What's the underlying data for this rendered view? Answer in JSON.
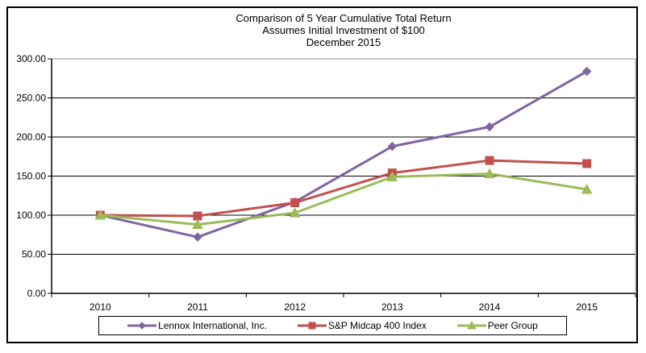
{
  "figure": {
    "background": "#ffffff",
    "border_color": "#000000"
  },
  "chart_data": {
    "type": "line",
    "title": "Comparison of 5 Year Cumulative Total Return",
    "subtitle1": "Assumes Initial Investment of $100",
    "subtitle2": "December 2015",
    "categories": [
      "2010",
      "2011",
      "2012",
      "2013",
      "2014",
      "2015"
    ],
    "series": [
      {
        "name": "Lennox International, Inc.",
        "color": "#8064A2",
        "marker": "diamond",
        "values": [
          100,
          72,
          117,
          188,
          213,
          284
        ]
      },
      {
        "name": "S&P Midcap 400 Index",
        "color": "#C0504D",
        "marker": "square",
        "values": [
          100,
          99,
          116,
          154,
          170,
          166
        ]
      },
      {
        "name": "Peer Group",
        "color": "#9BBB59",
        "marker": "triangle",
        "values": [
          100,
          88,
          103,
          149,
          153,
          133
        ]
      }
    ],
    "ylim": [
      0,
      300
    ],
    "yticks": [
      {
        "value": 0,
        "label": "0.00"
      },
      {
        "value": 50,
        "label": "50.00"
      },
      {
        "value": 100,
        "label": "100.00"
      },
      {
        "value": 150,
        "label": "150.00"
      },
      {
        "value": 200,
        "label": "200.00"
      },
      {
        "value": 250,
        "label": "250.00"
      },
      {
        "value": 300,
        "label": "300.00"
      }
    ],
    "grid": "horizontal",
    "legend_position": "bottom",
    "axis_color": "#000000",
    "plot_border_color": "#909090"
  }
}
